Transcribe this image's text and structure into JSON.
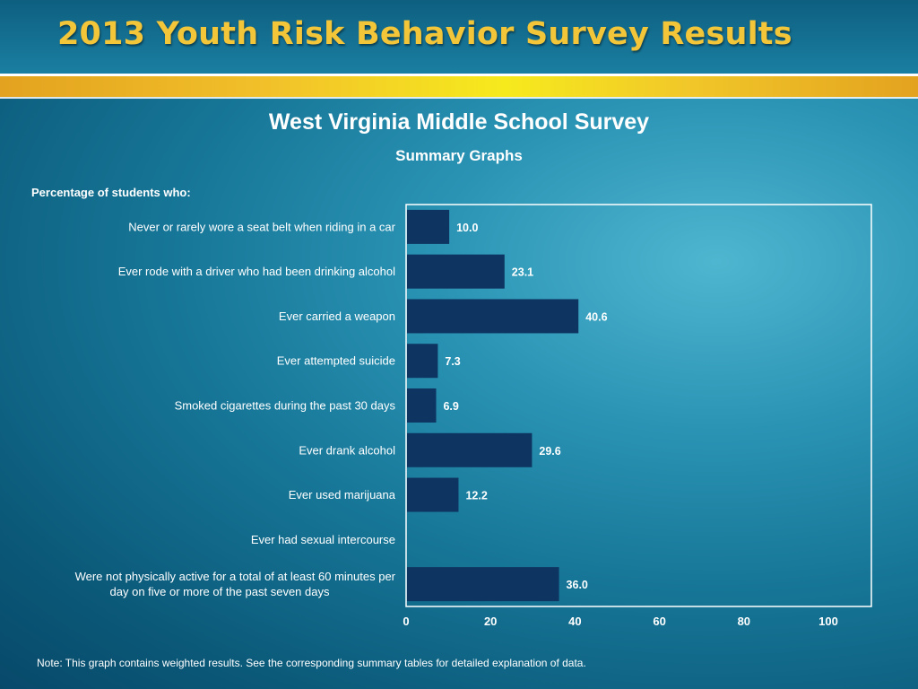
{
  "header": {
    "title": "2013 Youth Risk Behavior Survey Results"
  },
  "colors": {
    "bar": "#0e3561",
    "frame": "#ffffff",
    "title_gold": "#f3c63a"
  },
  "caption": "Percentage of students who:",
  "note": "Note: This graph contains weighted results. See the corresponding summary tables for detailed explanation of data.",
  "chart_data": {
    "type": "bar",
    "orientation": "horizontal",
    "title": "West Virginia Middle School Survey",
    "subtitle": "Summary Graphs",
    "categories": [
      [
        "Never or rarely wore a seat belt when riding in a car"
      ],
      [
        "Ever rode with a driver who had been drinking alcohol"
      ],
      [
        "Ever carried a weapon"
      ],
      [
        "Ever attempted suicide"
      ],
      [
        "Smoked cigarettes during the past 30 days"
      ],
      [
        "Ever drank alcohol"
      ],
      [
        "Ever used marijuana"
      ],
      [
        "Ever had sexual intercourse"
      ],
      [
        "Were not physically active for a total of at least 60 minutes per",
        "day on five or more of the past seven days"
      ]
    ],
    "values": [
      10.0,
      23.1,
      40.6,
      7.3,
      6.9,
      29.6,
      12.2,
      null,
      36.0
    ],
    "value_labels": [
      "10.0",
      "23.1",
      "40.6",
      "7.3",
      "6.9",
      "29.6",
      "12.2",
      "",
      "36.0"
    ],
    "xlim": [
      0,
      110
    ],
    "xticks": [
      0,
      20,
      40,
      60,
      80,
      100
    ],
    "grid": false,
    "legend": "none"
  }
}
